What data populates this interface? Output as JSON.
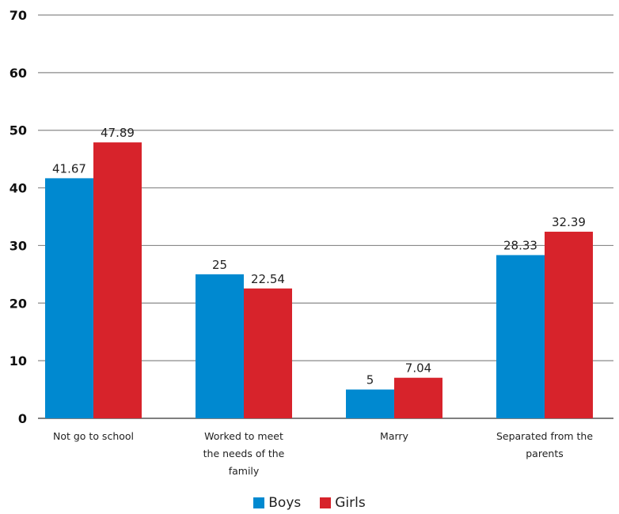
{
  "chart_data": {
    "type": "bar",
    "categories": [
      "Not go to school",
      "Worked to meet the needs of the family",
      "Marry",
      "Separated from the parents"
    ],
    "category_lines": [
      [
        "Not go to school"
      ],
      [
        "Worked to meet",
        "the needs of the",
        "family"
      ],
      [
        "Marry"
      ],
      [
        "Separated from the",
        "parents"
      ]
    ],
    "series": [
      {
        "name": "Boys",
        "color": "#0089d0",
        "values": [
          41.67,
          25,
          5,
          28.33
        ],
        "labels": [
          "41.67",
          "25",
          "5",
          "28.33"
        ]
      },
      {
        "name": "Girls",
        "color": "#d7232b",
        "values": [
          47.89,
          22.54,
          7.04,
          32.39
        ],
        "labels": [
          "47.89",
          "22.54",
          "7.04",
          "32.39"
        ]
      }
    ],
    "ylim": [
      0,
      70
    ],
    "yticks": [
      0,
      10,
      20,
      30,
      40,
      50,
      60,
      70
    ],
    "grid": true,
    "legend_position": "bottom-center",
    "title": "",
    "xlabel": "",
    "ylabel": ""
  }
}
